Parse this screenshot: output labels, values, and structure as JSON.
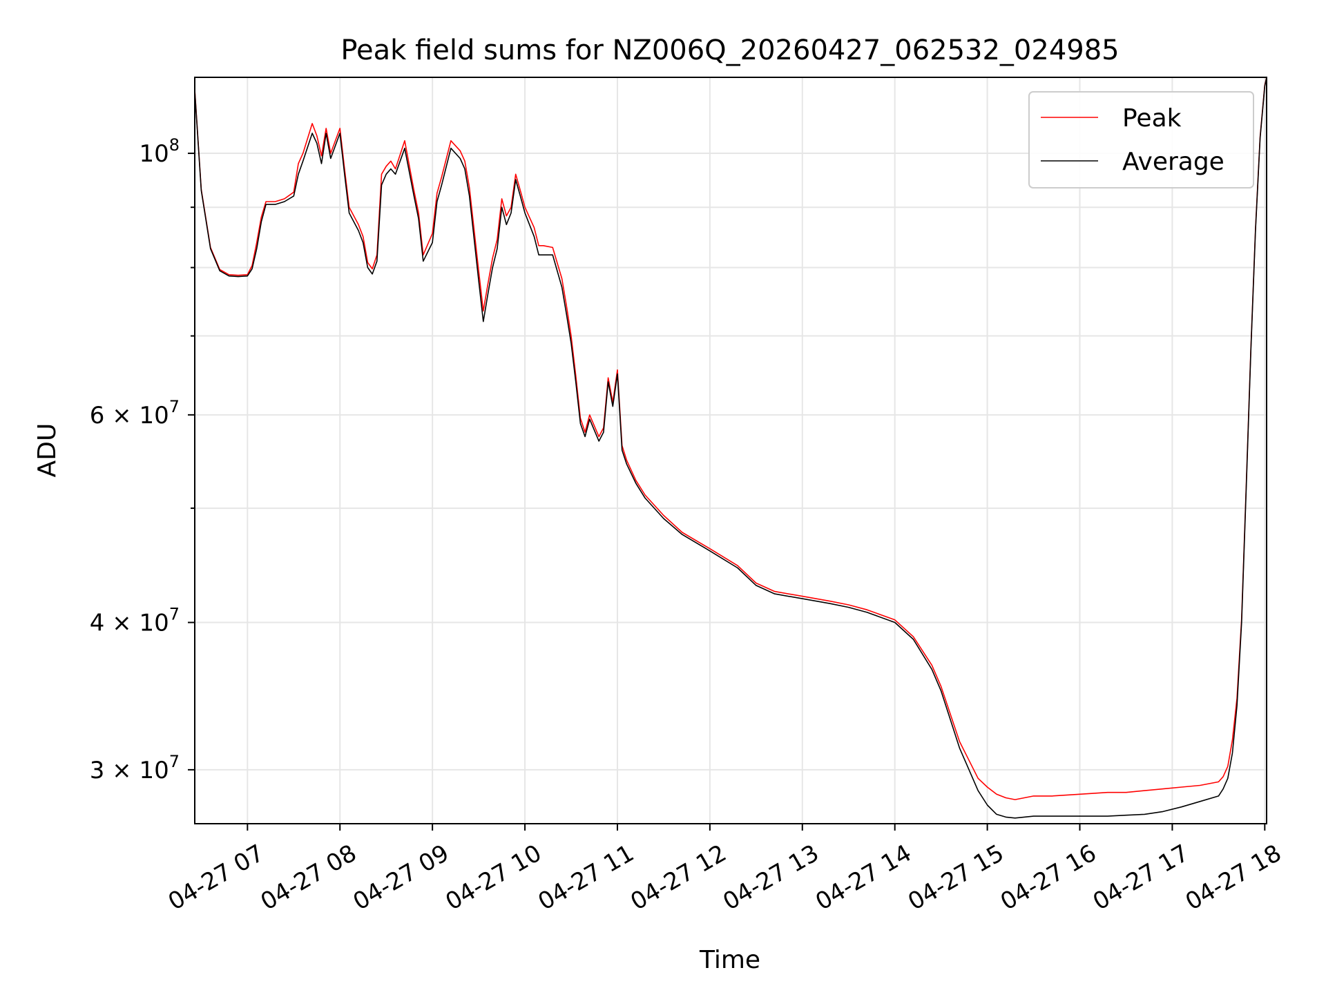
{
  "chart_data": {
    "type": "line",
    "title": "Peak field sums for NZ006Q_20260427_062532_024985",
    "xlabel": "Time",
    "ylabel": "ADU",
    "yscale": "log",
    "xlim": [
      6.43,
      18.02
    ],
    "ylim": [
      27000000,
      116000000
    ],
    "x_ticks": [
      {
        "value": 7,
        "label": "04-27 07"
      },
      {
        "value": 8,
        "label": "04-27 08"
      },
      {
        "value": 9,
        "label": "04-27 09"
      },
      {
        "value": 10,
        "label": "04-27 10"
      },
      {
        "value": 11,
        "label": "04-27 11"
      },
      {
        "value": 12,
        "label": "04-27 12"
      },
      {
        "value": 13,
        "label": "04-27 13"
      },
      {
        "value": 14,
        "label": "04-27 14"
      },
      {
        "value": 15,
        "label": "04-27 15"
      },
      {
        "value": 16,
        "label": "04-27 16"
      },
      {
        "value": 17,
        "label": "04-27 17"
      },
      {
        "value": 18,
        "label": "04-27 18"
      }
    ],
    "y_ticks_major": [
      {
        "value": 30000000,
        "base": "3 × 10",
        "exp": "7"
      },
      {
        "value": 40000000,
        "base": "4 × 10",
        "exp": "7"
      },
      {
        "value": 60000000,
        "base": "6 × 10",
        "exp": "7"
      },
      {
        "value": 100000000,
        "base": "10",
        "exp": "8"
      }
    ],
    "y_ticks_minor": [
      50000000,
      70000000,
      80000000,
      90000000
    ],
    "grid": true,
    "legend": {
      "position": "upper right",
      "entries": [
        "Peak",
        "Average"
      ]
    },
    "series": [
      {
        "name": "Average",
        "color": "#000000",
        "x": [
          6.43,
          6.5,
          6.6,
          6.7,
          6.8,
          6.9,
          7.0,
          7.05,
          7.1,
          7.15,
          7.2,
          7.3,
          7.4,
          7.5,
          7.55,
          7.6,
          7.7,
          7.75,
          7.8,
          7.85,
          7.9,
          8.0,
          8.05,
          8.1,
          8.2,
          8.25,
          8.3,
          8.35,
          8.4,
          8.45,
          8.5,
          8.55,
          8.6,
          8.7,
          8.8,
          8.85,
          8.9,
          9.0,
          9.05,
          9.1,
          9.2,
          9.3,
          9.35,
          9.4,
          9.5,
          9.55,
          9.6,
          9.65,
          9.7,
          9.75,
          9.8,
          9.85,
          9.9,
          9.95,
          10.0,
          10.1,
          10.15,
          10.2,
          10.3,
          10.4,
          10.45,
          10.5,
          10.55,
          10.6,
          10.65,
          10.7,
          10.8,
          10.85,
          10.9,
          10.95,
          11.0,
          11.05,
          11.1,
          11.2,
          11.3,
          11.5,
          11.7,
          12.0,
          12.3,
          12.5,
          12.7,
          13.0,
          13.3,
          13.5,
          13.7,
          14.0,
          14.2,
          14.4,
          14.5,
          14.7,
          14.9,
          15.0,
          15.1,
          15.2,
          15.3,
          15.4,
          15.5,
          15.7,
          16.0,
          16.3,
          16.5,
          16.7,
          16.9,
          17.1,
          17.3,
          17.5,
          17.55,
          17.6,
          17.65,
          17.7,
          17.75,
          17.8,
          17.85,
          17.9,
          17.95,
          18.0,
          18.02
        ],
        "y": [
          113000000,
          93000000,
          83000000,
          79500000,
          78700000,
          78600000,
          78700000,
          79800000,
          83000000,
          87500000,
          90500000,
          90500000,
          91000000,
          92000000,
          96000000,
          98500000,
          104000000,
          102000000,
          98000000,
          104000000,
          99000000,
          104000000,
          96000000,
          89000000,
          86000000,
          84000000,
          80000000,
          79000000,
          81000000,
          94000000,
          96000000,
          97000000,
          96000000,
          101000000,
          92000000,
          88000000,
          81000000,
          84000000,
          91000000,
          94000000,
          101000000,
          99000000,
          97000000,
          92000000,
          78000000,
          72000000,
          76000000,
          80000000,
          83000000,
          90000000,
          87000000,
          89000000,
          95000000,
          92000000,
          89000000,
          85000000,
          82000000,
          82000000,
          82000000,
          77000000,
          73000000,
          69000000,
          64000000,
          59000000,
          57500000,
          59500000,
          57000000,
          58000000,
          64000000,
          61000000,
          65000000,
          56000000,
          54500000,
          52500000,
          51000000,
          49000000,
          47500000,
          46000000,
          44500000,
          43000000,
          42300000,
          41900000,
          41500000,
          41200000,
          40800000,
          40000000,
          38700000,
          36500000,
          35000000,
          31300000,
          28800000,
          28000000,
          27500000,
          27350000,
          27300000,
          27350000,
          27400000,
          27400000,
          27400000,
          27400000,
          27450000,
          27500000,
          27650000,
          27900000,
          28200000,
          28500000,
          28900000,
          29500000,
          31000000,
          34000000,
          40000000,
          52000000,
          68000000,
          86000000,
          103000000,
          114000000,
          116000000
        ]
      },
      {
        "name": "Peak",
        "color": "#ff0000",
        "x": [
          6.43,
          6.5,
          6.6,
          6.7,
          6.8,
          6.9,
          7.0,
          7.05,
          7.1,
          7.15,
          7.2,
          7.3,
          7.4,
          7.5,
          7.55,
          7.6,
          7.7,
          7.75,
          7.8,
          7.85,
          7.9,
          8.0,
          8.05,
          8.1,
          8.2,
          8.25,
          8.3,
          8.35,
          8.4,
          8.45,
          8.5,
          8.55,
          8.6,
          8.7,
          8.8,
          8.85,
          8.9,
          9.0,
          9.05,
          9.1,
          9.2,
          9.3,
          9.35,
          9.4,
          9.5,
          9.55,
          9.6,
          9.65,
          9.7,
          9.75,
          9.8,
          9.85,
          9.9,
          9.95,
          10.0,
          10.1,
          10.15,
          10.2,
          10.3,
          10.4,
          10.45,
          10.5,
          10.55,
          10.6,
          10.65,
          10.7,
          10.8,
          10.85,
          10.9,
          10.95,
          11.0,
          11.05,
          11.1,
          11.2,
          11.3,
          11.5,
          11.7,
          12.0,
          12.3,
          12.5,
          12.7,
          13.0,
          13.3,
          13.5,
          13.7,
          14.0,
          14.2,
          14.4,
          14.5,
          14.7,
          14.9,
          15.0,
          15.1,
          15.2,
          15.3,
          15.4,
          15.5,
          15.7,
          16.0,
          16.3,
          16.5,
          16.7,
          16.9,
          17.1,
          17.3,
          17.5,
          17.55,
          17.6,
          17.65,
          17.7,
          17.75,
          17.8,
          17.85,
          17.9,
          17.95,
          18.0,
          18.02
        ],
        "y": [
          113300000,
          93200000,
          83200000,
          79700000,
          78900000,
          78800000,
          78900000,
          80300000,
          84000000,
          88300000,
          91000000,
          91000000,
          91500000,
          92700000,
          98000000,
          100000000,
          106000000,
          103500000,
          99500000,
          105000000,
          100000000,
          105000000,
          97000000,
          90000000,
          87000000,
          85000000,
          80800000,
          79800000,
          82000000,
          96000000,
          97500000,
          98500000,
          97000000,
          102500000,
          93000000,
          89000000,
          82000000,
          85500000,
          92500000,
          95500000,
          102500000,
          100500000,
          98500000,
          93500000,
          79500000,
          73500000,
          77500000,
          81500000,
          84500000,
          91500000,
          88500000,
          90000000,
          96000000,
          93000000,
          90000000,
          86500000,
          83500000,
          83500000,
          83200000,
          78300000,
          74200000,
          70000000,
          64800000,
          59600000,
          58000000,
          60000000,
          57500000,
          58500000,
          64500000,
          61500000,
          65500000,
          56500000,
          54900000,
          52800000,
          51300000,
          49300000,
          47700000,
          46200000,
          44700000,
          43200000,
          42500000,
          42100000,
          41700000,
          41400000,
          41000000,
          40200000,
          38900000,
          36800000,
          35300000,
          31700000,
          29500000,
          29000000,
          28600000,
          28400000,
          28300000,
          28400000,
          28500000,
          28500000,
          28600000,
          28700000,
          28700000,
          28800000,
          28900000,
          29000000,
          29100000,
          29300000,
          29600000,
          30200000,
          31800000,
          34500000,
          40300000,
          52300000,
          68300000,
          86300000,
          103300000,
          114200000,
          116000000
        ]
      }
    ]
  }
}
